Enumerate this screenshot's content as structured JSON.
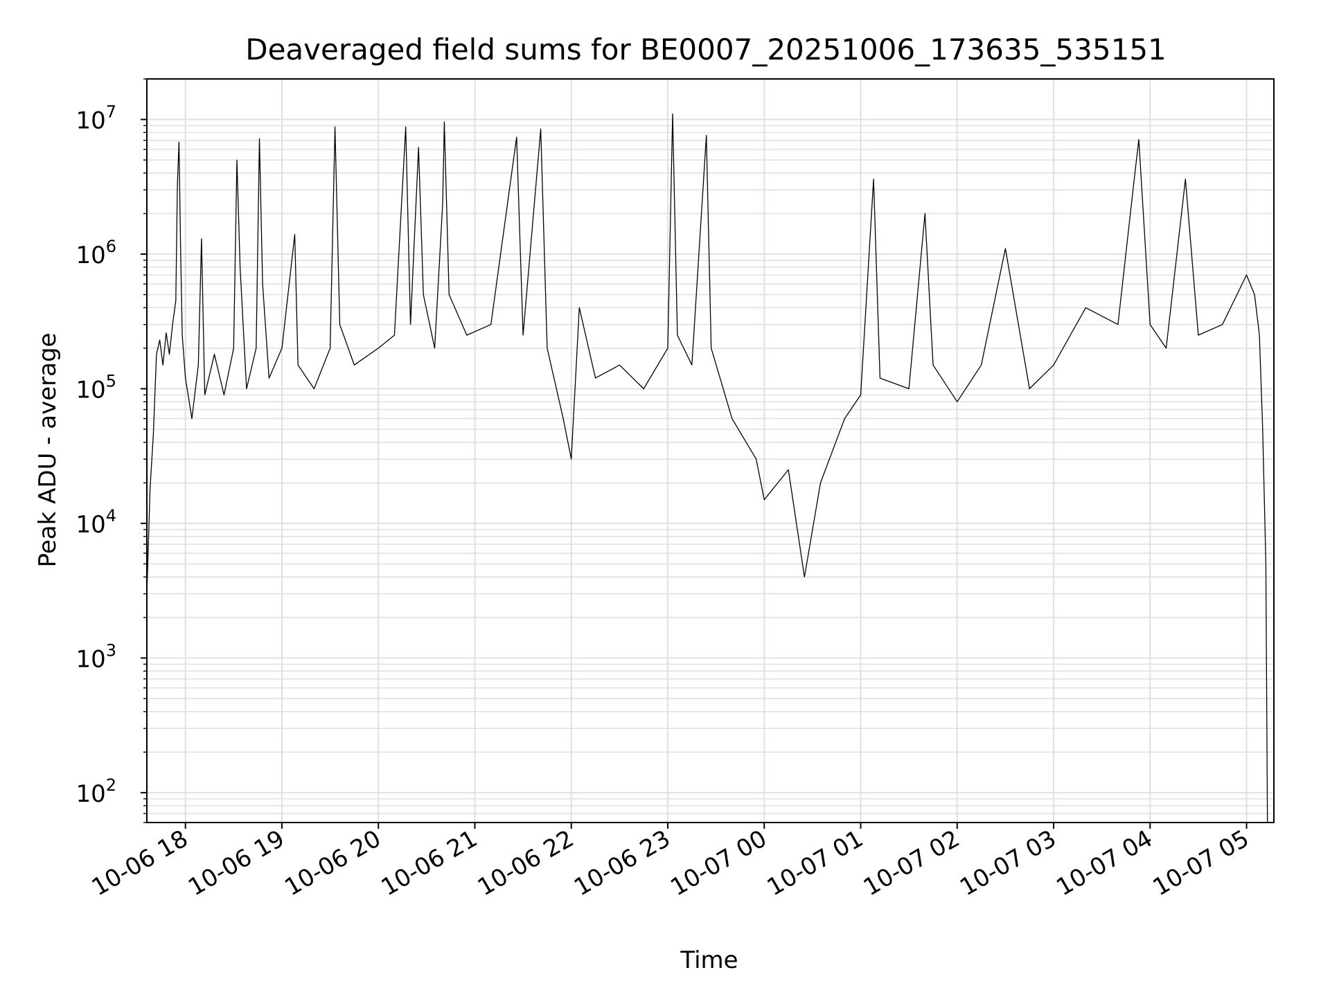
{
  "chart_data": {
    "type": "line",
    "title": "Deaveraged field sums for BE0007_20251006_173635_535151",
    "xlabel": "Time",
    "ylabel": "Peak ADU - average",
    "yscale": "log",
    "ylim": [
      60,
      20000000
    ],
    "xlim": [
      "2025-10-06 17:36",
      "2025-10-07 05:17"
    ],
    "grid": true,
    "grid_minor": true,
    "line_color": "#000000",
    "grid_color": "#e0e0e0",
    "x_ticks": [
      {
        "label": "10-06 18",
        "value": "2025-10-06 18:00"
      },
      {
        "label": "10-06 19",
        "value": "2025-10-06 19:00"
      },
      {
        "label": "10-06 20",
        "value": "2025-10-06 20:00"
      },
      {
        "label": "10-06 21",
        "value": "2025-10-06 21:00"
      },
      {
        "label": "10-06 22",
        "value": "2025-10-06 22:00"
      },
      {
        "label": "10-06 23",
        "value": "2025-10-06 23:00"
      },
      {
        "label": "10-07 00",
        "value": "2025-10-07 00:00"
      },
      {
        "label": "10-07 01",
        "value": "2025-10-07 01:00"
      },
      {
        "label": "10-07 02",
        "value": "2025-10-07 02:00"
      },
      {
        "label": "10-07 03",
        "value": "2025-10-07 03:00"
      },
      {
        "label": "10-07 04",
        "value": "2025-10-07 04:00"
      },
      {
        "label": "10-07 05",
        "value": "2025-10-07 05:00"
      }
    ],
    "y_ticks": [
      {
        "base": "10",
        "exp": "2",
        "value": 100
      },
      {
        "base": "10",
        "exp": "3",
        "value": 1000
      },
      {
        "base": "10",
        "exp": "4",
        "value": 10000
      },
      {
        "base": "10",
        "exp": "5",
        "value": 100000
      },
      {
        "base": "10",
        "exp": "6",
        "value": 1000000
      },
      {
        "base": "10",
        "exp": "7",
        "value": 10000000
      }
    ],
    "series": [
      {
        "points": [
          [
            "2025-10-06 17:36",
            3000
          ],
          [
            "2025-10-06 17:38",
            18000
          ],
          [
            "2025-10-06 17:40",
            45000
          ],
          [
            "2025-10-06 17:42",
            180000
          ],
          [
            "2025-10-06 17:44",
            230000
          ],
          [
            "2025-10-06 17:46",
            150000
          ],
          [
            "2025-10-06 17:48",
            260000
          ],
          [
            "2025-10-06 17:50",
            180000
          ],
          [
            "2025-10-06 17:52",
            300000
          ],
          [
            "2025-10-06 17:54",
            450000
          ],
          [
            "2025-10-06 17:55",
            3300000
          ],
          [
            "2025-10-06 17:56",
            6800000
          ],
          [
            "2025-10-06 17:57",
            1100000
          ],
          [
            "2025-10-06 17:58",
            250000
          ],
          [
            "2025-10-06 18:00",
            120000
          ],
          [
            "2025-10-06 18:04",
            60000
          ],
          [
            "2025-10-06 18:08",
            150000
          ],
          [
            "2025-10-06 18:10",
            1300000
          ],
          [
            "2025-10-06 18:12",
            90000
          ],
          [
            "2025-10-06 18:18",
            180000
          ],
          [
            "2025-10-06 18:24",
            90000
          ],
          [
            "2025-10-06 18:30",
            200000
          ],
          [
            "2025-10-06 18:32",
            5000000
          ],
          [
            "2025-10-06 18:34",
            800000
          ],
          [
            "2025-10-06 18:38",
            100000
          ],
          [
            "2025-10-06 18:44",
            200000
          ],
          [
            "2025-10-06 18:46",
            7200000
          ],
          [
            "2025-10-06 18:48",
            600000
          ],
          [
            "2025-10-06 18:52",
            120000
          ],
          [
            "2025-10-06 19:00",
            200000
          ],
          [
            "2025-10-06 19:08",
            1400000
          ],
          [
            "2025-10-06 19:10",
            150000
          ],
          [
            "2025-10-06 19:20",
            100000
          ],
          [
            "2025-10-06 19:30",
            200000
          ],
          [
            "2025-10-06 19:33",
            8800000
          ],
          [
            "2025-10-06 19:36",
            300000
          ],
          [
            "2025-10-06 19:45",
            150000
          ],
          [
            "2025-10-06 20:00",
            200000
          ],
          [
            "2025-10-06 20:10",
            250000
          ],
          [
            "2025-10-06 20:17",
            8800000
          ],
          [
            "2025-10-06 20:20",
            300000
          ],
          [
            "2025-10-06 20:25",
            6200000
          ],
          [
            "2025-10-06 20:28",
            500000
          ],
          [
            "2025-10-06 20:35",
            200000
          ],
          [
            "2025-10-06 20:40",
            2400000
          ],
          [
            "2025-10-06 20:41",
            9600000
          ],
          [
            "2025-10-06 20:44",
            500000
          ],
          [
            "2025-10-06 20:55",
            250000
          ],
          [
            "2025-10-06 21:10",
            300000
          ],
          [
            "2025-10-06 21:26",
            7400000
          ],
          [
            "2025-10-06 21:30",
            250000
          ],
          [
            "2025-10-06 21:41",
            8500000
          ],
          [
            "2025-10-06 21:45",
            200000
          ],
          [
            "2025-10-06 21:55",
            60000
          ],
          [
            "2025-10-06 22:00",
            30000
          ],
          [
            "2025-10-06 22:05",
            400000
          ],
          [
            "2025-10-06 22:15",
            120000
          ],
          [
            "2025-10-06 22:30",
            150000
          ],
          [
            "2025-10-06 22:45",
            100000
          ],
          [
            "2025-10-06 23:00",
            200000
          ],
          [
            "2025-10-06 23:03",
            11000000
          ],
          [
            "2025-10-06 23:06",
            250000
          ],
          [
            "2025-10-06 23:15",
            150000
          ],
          [
            "2025-10-06 23:24",
            7600000
          ],
          [
            "2025-10-06 23:27",
            200000
          ],
          [
            "2025-10-06 23:40",
            60000
          ],
          [
            "2025-10-06 23:55",
            30000
          ],
          [
            "2025-10-07 00:00",
            15000
          ],
          [
            "2025-10-07 00:15",
            25000
          ],
          [
            "2025-10-07 00:25",
            4000
          ],
          [
            "2025-10-07 00:35",
            20000
          ],
          [
            "2025-10-07 00:50",
            60000
          ],
          [
            "2025-10-07 01:00",
            90000
          ],
          [
            "2025-10-07 01:08",
            3600000
          ],
          [
            "2025-10-07 01:12",
            120000
          ],
          [
            "2025-10-07 01:30",
            100000
          ],
          [
            "2025-10-07 01:40",
            2000000
          ],
          [
            "2025-10-07 01:45",
            150000
          ],
          [
            "2025-10-07 02:00",
            80000
          ],
          [
            "2025-10-07 02:15",
            150000
          ],
          [
            "2025-10-07 02:30",
            1100000
          ],
          [
            "2025-10-07 02:45",
            100000
          ],
          [
            "2025-10-07 03:00",
            150000
          ],
          [
            "2025-10-07 03:20",
            400000
          ],
          [
            "2025-10-07 03:40",
            300000
          ],
          [
            "2025-10-07 03:50",
            3500000
          ],
          [
            "2025-10-07 03:53",
            7100000
          ],
          [
            "2025-10-07 04:00",
            300000
          ],
          [
            "2025-10-07 04:10",
            200000
          ],
          [
            "2025-10-07 04:22",
            3600000
          ],
          [
            "2025-10-07 04:30",
            250000
          ],
          [
            "2025-10-07 04:45",
            300000
          ],
          [
            "2025-10-07 05:00",
            700000
          ],
          [
            "2025-10-07 05:05",
            500000
          ],
          [
            "2025-10-07 05:08",
            250000
          ],
          [
            "2025-10-07 05:10",
            50000
          ],
          [
            "2025-10-07 05:12",
            5000
          ],
          [
            "2025-10-07 05:13",
            60
          ]
        ]
      }
    ]
  }
}
